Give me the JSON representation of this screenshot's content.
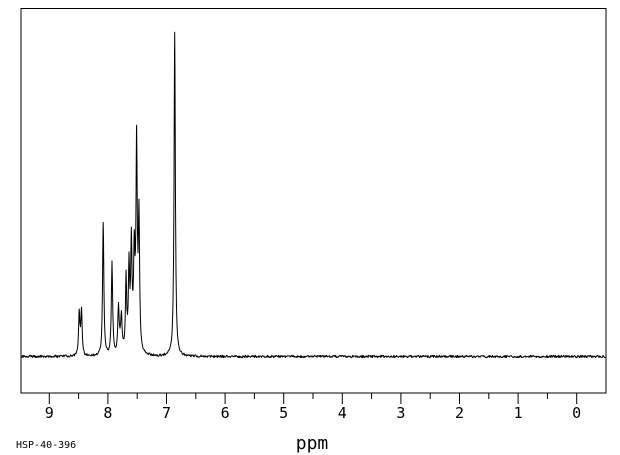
{
  "window": {
    "background_color": "#ffffff",
    "line_color": "#000000"
  },
  "chart_data": {
    "type": "line",
    "subtype": "1H-NMR-spectrum",
    "title": "",
    "xlabel": "ppm",
    "ylabel": "",
    "x_axis": {
      "min": -0.5,
      "max": 9.5,
      "reversed": true,
      "major_ticks": [
        9,
        8,
        7,
        6,
        5,
        4,
        3,
        2,
        1,
        0
      ],
      "major_tick_labels": [
        "9",
        "8",
        "7",
        "6",
        "5",
        "4",
        "3",
        "2",
        "1",
        "0"
      ],
      "minor_ticks": [
        8.5,
        7.5,
        6.5,
        5.5,
        4.5,
        3.5,
        2.5,
        1.5,
        0.5
      ]
    },
    "y_axis": {
      "visible": false
    },
    "grid": false,
    "legend": false,
    "peaks": [
      {
        "ppm": 8.49,
        "intensity": 0.12
      },
      {
        "ppm": 8.45,
        "intensity": 0.13
      },
      {
        "ppm": 8.08,
        "intensity": 0.421
      },
      {
        "ppm": 7.93,
        "intensity": 0.275
      },
      {
        "ppm": 7.82,
        "intensity": 0.133
      },
      {
        "ppm": 7.77,
        "intensity": 0.098
      },
      {
        "ppm": 7.69,
        "intensity": 0.237
      },
      {
        "ppm": 7.64,
        "intensity": 0.263
      },
      {
        "ppm": 7.6,
        "intensity": 0.313
      },
      {
        "ppm": 7.55,
        "intensity": 0.263
      },
      {
        "ppm": 7.51,
        "intensity": 0.633
      },
      {
        "ppm": 7.47,
        "intensity": 0.421
      },
      {
        "ppm": 6.86,
        "intensity": 1.0
      }
    ],
    "base_humps": [
      {
        "ppm": 8.47,
        "intensity": 0.022,
        "width_ppm": 0.05
      },
      {
        "ppm": 7.93,
        "intensity": 0.02,
        "width_ppm": 0.04
      },
      {
        "ppm": 7.79,
        "intensity": 0.03,
        "width_ppm": 0.08
      },
      {
        "ppm": 7.56,
        "intensity": 0.045,
        "width_ppm": 0.1
      },
      {
        "ppm": 6.86,
        "intensity": 0.022,
        "width_ppm": 0.05
      }
    ],
    "noise_amplitude_rel": 0.004,
    "line_color": "#000000"
  },
  "footer": {
    "sample_id": "HSP-40-396"
  }
}
